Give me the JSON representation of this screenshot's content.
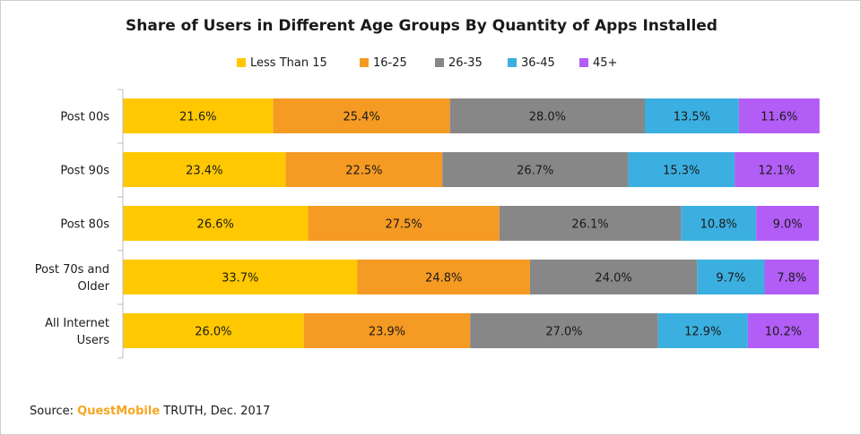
{
  "chart_data": {
    "type": "bar",
    "orientation": "horizontal",
    "stacked": true,
    "title": "Share of Users in Different Age Groups By Quantity of Apps Installed",
    "categories": [
      "Post 00s",
      "Post 90s",
      "Post 80s",
      "Post 70s and Older",
      "All Internet Users"
    ],
    "category_lines": [
      [
        "Post 00s"
      ],
      [
        "Post 90s"
      ],
      [
        "Post 80s"
      ],
      [
        "Post 70s and",
        "Older"
      ],
      [
        "All Internet",
        "Users"
      ]
    ],
    "series": [
      {
        "name": "Less Than 15",
        "color": "#ffc800",
        "values": [
          21.6,
          23.4,
          26.6,
          33.7,
          26.0
        ]
      },
      {
        "name": "16-25",
        "color": "#f59a23",
        "values": [
          25.4,
          22.5,
          27.5,
          24.8,
          23.9
        ]
      },
      {
        "name": "26-35",
        "color": "#878787",
        "values": [
          28.0,
          26.7,
          26.1,
          24.0,
          27.0
        ]
      },
      {
        "name": "36-45",
        "color": "#3bafe0",
        "values": [
          13.5,
          15.3,
          10.8,
          9.7,
          12.9
        ]
      },
      {
        "name": "45+",
        "color": "#b25df5",
        "values": [
          11.6,
          12.1,
          9.0,
          7.8,
          10.2
        ]
      }
    ],
    "value_suffix": "%",
    "xlim": [
      0,
      100
    ],
    "legend_position": "top",
    "grid": false
  },
  "source": {
    "prefix": "Source: ",
    "brand": "QuestMobile",
    "suffix": " TRUTH, Dec. 2017"
  }
}
